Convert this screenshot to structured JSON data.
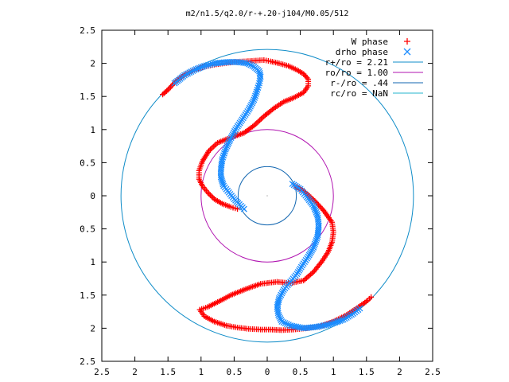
{
  "chart_data": {
    "type": "scatter",
    "title": "m2/n1.5/q2.0/r-+.20-j104/M0.05/512",
    "xlabel": "",
    "ylabel": "",
    "xlim": [
      -2.5,
      2.5
    ],
    "ylim": [
      -2.5,
      2.5
    ],
    "x_ticks": [
      {
        "v": -2.5,
        "label": "2.5"
      },
      {
        "v": -2,
        "label": "2"
      },
      {
        "v": -1.5,
        "label": "1.5"
      },
      {
        "v": -1,
        "label": "1"
      },
      {
        "v": -0.5,
        "label": "0.5"
      },
      {
        "v": 0,
        "label": "0"
      },
      {
        "v": 0.5,
        "label": "0.5"
      },
      {
        "v": 1,
        "label": "1"
      },
      {
        "v": 1.5,
        "label": "1.5"
      },
      {
        "v": 2,
        "label": "2"
      },
      {
        "v": 2.5,
        "label": "2.5"
      }
    ],
    "y_ticks": [
      {
        "v": 2.5,
        "label": "2.5"
      },
      {
        "v": 2,
        "label": "2"
      },
      {
        "v": 1.5,
        "label": "1.5"
      },
      {
        "v": 1,
        "label": "1"
      },
      {
        "v": 0.5,
        "label": "0.5"
      },
      {
        "v": 0,
        "label": "0"
      },
      {
        "v": -0.5,
        "label": "0.5"
      },
      {
        "v": -1,
        "label": "1"
      },
      {
        "v": -1.5,
        "label": "1.5"
      },
      {
        "v": -2,
        "label": "2"
      },
      {
        "v": -2.5,
        "label": "2.5"
      }
    ],
    "grid": false,
    "legend_position": "top-right",
    "series": [
      {
        "name": "W phase",
        "kind": "points",
        "marker": "plus",
        "color": "#ff0000",
        "points": [
          [
            -1.58,
            1.53
          ],
          [
            -1.5,
            1.6
          ],
          [
            -1.38,
            1.73
          ],
          [
            -1.25,
            1.83
          ],
          [
            -1.1,
            1.9
          ],
          [
            -0.95,
            1.95
          ],
          [
            -0.8,
            1.98
          ],
          [
            -0.65,
            2.0
          ],
          [
            -0.5,
            2.02
          ],
          [
            -0.35,
            2.03
          ],
          [
            -0.2,
            2.04
          ],
          [
            -0.05,
            2.05
          ],
          [
            0.05,
            2.03
          ],
          [
            0.18,
            2.0
          ],
          [
            0.32,
            1.96
          ],
          [
            0.45,
            1.9
          ],
          [
            0.55,
            1.84
          ],
          [
            0.62,
            1.76
          ],
          [
            0.62,
            1.66
          ],
          [
            0.55,
            1.56
          ],
          [
            0.4,
            1.48
          ],
          [
            0.25,
            1.42
          ],
          [
            0.1,
            1.32
          ],
          [
            -0.05,
            1.2
          ],
          [
            -0.2,
            1.06
          ],
          [
            -0.35,
            0.95
          ],
          [
            -0.55,
            0.88
          ],
          [
            -0.75,
            0.8
          ],
          [
            -0.88,
            0.68
          ],
          [
            -0.98,
            0.52
          ],
          [
            -1.03,
            0.38
          ],
          [
            -1.03,
            0.25
          ],
          [
            -0.98,
            0.15
          ],
          [
            -0.9,
            0.05
          ],
          [
            -0.8,
            -0.05
          ],
          [
            -0.68,
            -0.12
          ],
          [
            -0.55,
            -0.17
          ],
          [
            -0.45,
            -0.2
          ],
          [
            0.42,
            0.15
          ],
          [
            0.58,
            0.05
          ],
          [
            0.72,
            -0.08
          ],
          [
            0.85,
            -0.22
          ],
          [
            0.98,
            -0.4
          ],
          [
            1.0,
            -0.55
          ],
          [
            0.98,
            -0.7
          ],
          [
            0.92,
            -0.85
          ],
          [
            0.82,
            -1.0
          ],
          [
            0.7,
            -1.15
          ],
          [
            0.55,
            -1.28
          ],
          [
            0.35,
            -1.32
          ],
          [
            0.15,
            -1.3
          ],
          [
            -0.1,
            -1.33
          ],
          [
            -0.3,
            -1.4
          ],
          [
            -0.55,
            -1.5
          ],
          [
            -0.7,
            -1.58
          ],
          [
            -0.9,
            -1.68
          ],
          [
            -1.02,
            -1.72
          ],
          [
            -0.95,
            -1.82
          ],
          [
            -0.8,
            -1.9
          ],
          [
            -0.62,
            -1.96
          ],
          [
            -0.45,
            -1.99
          ],
          [
            -0.28,
            -2.01
          ],
          [
            -0.1,
            -2.02
          ],
          [
            0.05,
            -2.02
          ],
          [
            0.22,
            -2.03
          ],
          [
            0.4,
            -2.02
          ],
          [
            0.6,
            -2.0
          ],
          [
            0.8,
            -1.97
          ],
          [
            1.0,
            -1.9
          ],
          [
            1.2,
            -1.8
          ],
          [
            1.38,
            -1.68
          ],
          [
            1.52,
            -1.58
          ],
          [
            1.57,
            -1.53
          ]
        ]
      },
      {
        "name": "drho phase",
        "kind": "points",
        "marker": "cross",
        "color": "#1a8cff",
        "points": [
          [
            -1.4,
            1.7
          ],
          [
            -1.25,
            1.82
          ],
          [
            -1.1,
            1.9
          ],
          [
            -0.95,
            1.96
          ],
          [
            -0.8,
            2.0
          ],
          [
            -0.6,
            2.02
          ],
          [
            -0.45,
            2.02
          ],
          [
            -0.3,
            2.0
          ],
          [
            -0.2,
            1.95
          ],
          [
            -0.12,
            1.88
          ],
          [
            -0.1,
            1.8
          ],
          [
            -0.12,
            1.7
          ],
          [
            -0.15,
            1.6
          ],
          [
            -0.2,
            1.45
          ],
          [
            -0.28,
            1.3
          ],
          [
            -0.38,
            1.15
          ],
          [
            -0.48,
            1.0
          ],
          [
            -0.56,
            0.85
          ],
          [
            -0.63,
            0.7
          ],
          [
            -0.68,
            0.55
          ],
          [
            -0.7,
            0.4
          ],
          [
            -0.7,
            0.28
          ],
          [
            -0.66,
            0.15
          ],
          [
            -0.58,
            0.05
          ],
          [
            -0.5,
            -0.05
          ],
          [
            -0.42,
            -0.13
          ],
          [
            -0.35,
            -0.2
          ],
          [
            0.38,
            0.18
          ],
          [
            0.5,
            0.1
          ],
          [
            0.6,
            -0.02
          ],
          [
            0.7,
            -0.15
          ],
          [
            0.76,
            -0.3
          ],
          [
            0.78,
            -0.45
          ],
          [
            0.76,
            -0.62
          ],
          [
            0.7,
            -0.78
          ],
          [
            0.62,
            -0.92
          ],
          [
            0.53,
            -1.05
          ],
          [
            0.45,
            -1.18
          ],
          [
            0.35,
            -1.3
          ],
          [
            0.25,
            -1.42
          ],
          [
            0.18,
            -1.55
          ],
          [
            0.15,
            -1.68
          ],
          [
            0.17,
            -1.8
          ],
          [
            0.22,
            -1.9
          ],
          [
            0.35,
            -1.96
          ],
          [
            0.55,
            -2.0
          ],
          [
            0.75,
            -1.98
          ],
          [
            0.95,
            -1.94
          ],
          [
            1.15,
            -1.87
          ],
          [
            1.3,
            -1.78
          ],
          [
            1.4,
            -1.7
          ]
        ]
      },
      {
        "name": "r+/ro = 2.21",
        "kind": "circle",
        "r": 2.21,
        "color": "#0f8cc8"
      },
      {
        "name": "ro/ro = 1.00",
        "kind": "circle",
        "r": 1.0,
        "color": "#b013b0"
      },
      {
        "name": "r-/ro = .44",
        "kind": "circle",
        "r": 0.44,
        "color": "#1266b0"
      },
      {
        "name": "rc/ro = NaN",
        "kind": "circle",
        "r": null,
        "color": "#24b4cc"
      }
    ]
  }
}
